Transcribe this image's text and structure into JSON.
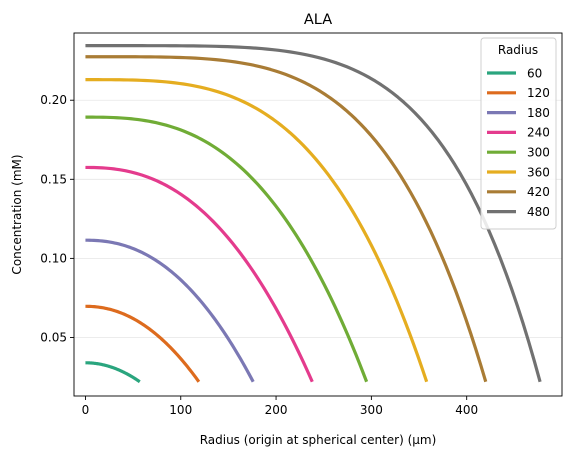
{
  "chart_data": {
    "type": "line",
    "title": "ALA",
    "xlabel": "Radius (origin at spherical center) (μm)",
    "ylabel": "Concentration (mM)",
    "xlim": [
      -12,
      500
    ],
    "ylim": [
      0.013,
      0.2425
    ],
    "xticks": [
      0,
      100,
      200,
      300,
      400
    ],
    "yticks": [
      0.05,
      0.1,
      0.15,
      0.2
    ],
    "ytick_labels": [
      "0.05",
      "0.10",
      "0.15",
      "0.20"
    ],
    "grid": "horizontal, light",
    "legend": {
      "title": "Radius",
      "placement": "top-right"
    },
    "series": [
      {
        "name": "60",
        "color": "#2aa57e",
        "r_end": 57,
        "c_center": 0.034,
        "c_edge": 0.022,
        "shape_power": 2.0
      },
      {
        "name": "120",
        "color": "#dd6b1e",
        "r_end": 119,
        "c_center": 0.0697,
        "c_edge": 0.022,
        "shape_power": 2.1
      },
      {
        "name": "180",
        "color": "#7b78b4",
        "r_end": 176,
        "c_center": 0.1115,
        "c_edge": 0.022,
        "shape_power": 2.25
      },
      {
        "name": "240",
        "color": "#e43b8d",
        "r_end": 238,
        "c_center": 0.1575,
        "c_edge": 0.022,
        "shape_power": 2.4
      },
      {
        "name": "300",
        "color": "#70ac36",
        "r_end": 295,
        "c_center": 0.1893,
        "c_edge": 0.022,
        "shape_power": 2.8
      },
      {
        "name": "360",
        "color": "#e5ad20",
        "r_end": 358,
        "c_center": 0.213,
        "c_edge": 0.022,
        "shape_power": 3.4
      },
      {
        "name": "420",
        "color": "#a97c35",
        "r_end": 420,
        "c_center": 0.2275,
        "c_edge": 0.022,
        "shape_power": 4.2
      },
      {
        "name": "480",
        "color": "#717171",
        "r_end": 477,
        "c_center": 0.2345,
        "c_edge": 0.022,
        "shape_power": 5.0
      }
    ]
  }
}
